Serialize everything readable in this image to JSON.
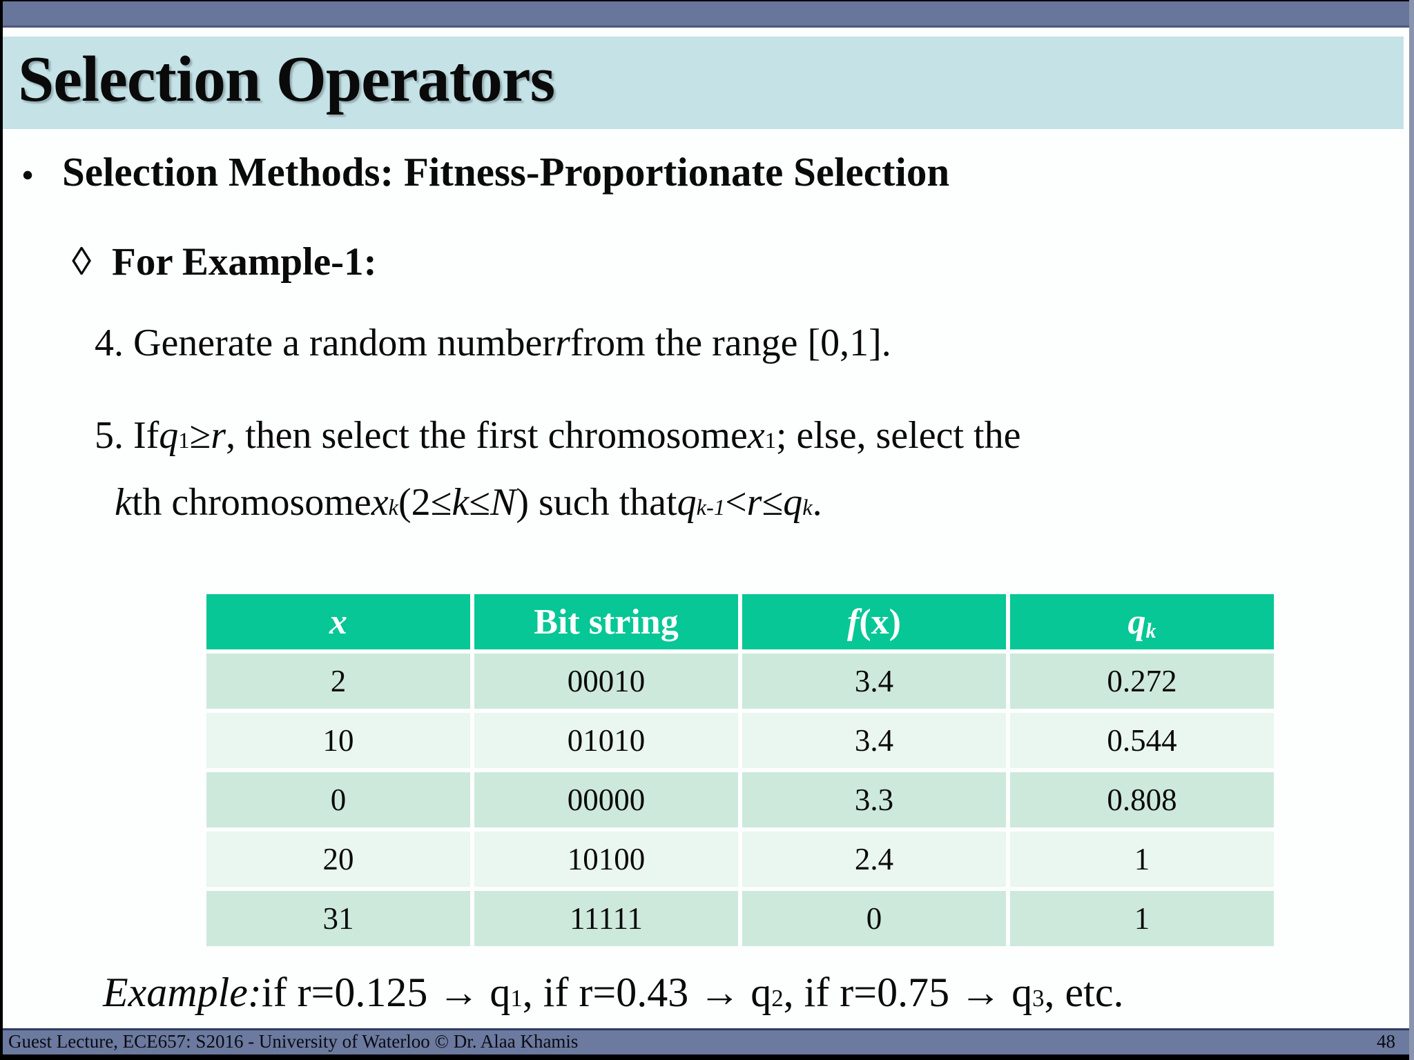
{
  "colors": {
    "top_bar": "#68769b",
    "title_band": "#c5e2e7",
    "table_header": "#06c795",
    "row_dark": "#cde9dc",
    "row_light": "#eaf6f0",
    "footer_bar": "#6b7a9e"
  },
  "header": {
    "title": "Selection Operators"
  },
  "bullets": {
    "l1_marker": "•",
    "l1": "Selection Methods: Fitness-Proportionate Selection",
    "l2_marker": "◊",
    "l2": "For Example-1:"
  },
  "steps": {
    "s4": [
      {
        "v": "4. Generate a random number "
      },
      {
        "st": "i",
        "v": "r"
      },
      {
        "v": " from the range [0,1]."
      }
    ],
    "s5a": [
      {
        "v": "5. If "
      },
      {
        "st": "i",
        "v": "q"
      },
      {
        "st": "sub",
        "v": "1"
      },
      {
        "v": "≥"
      },
      {
        "st": "i",
        "v": "r"
      },
      {
        "v": ", then select the first chromosome "
      },
      {
        "st": "i",
        "v": "x"
      },
      {
        "st": "sub",
        "v": "1"
      },
      {
        "v": "; else, select the"
      }
    ],
    "s5b": [
      {
        "st": "i",
        "v": "k"
      },
      {
        "v": "th chromosome "
      },
      {
        "st": "i",
        "v": "x"
      },
      {
        "st": "is",
        "v": "k"
      },
      {
        "v": " (2≤ "
      },
      {
        "st": "i",
        "v": "k"
      },
      {
        "v": " ≤ "
      },
      {
        "st": "i",
        "v": "N"
      },
      {
        "v": ") such that "
      },
      {
        "st": "i",
        "v": "q"
      },
      {
        "st": "is",
        "v": "k-1"
      },
      {
        "v": " < "
      },
      {
        "st": "i",
        "v": "r"
      },
      {
        "v": " ≤ "
      },
      {
        "st": "i",
        "v": "q"
      },
      {
        "st": "is",
        "v": "k"
      },
      {
        "v": "."
      }
    ]
  },
  "table": {
    "headers": [
      [
        {
          "st": "i",
          "v": "x"
        }
      ],
      [
        {
          "v": "Bit string"
        }
      ],
      [
        {
          "st": "i",
          "v": "f"
        },
        {
          "v": "(x)"
        }
      ],
      [
        {
          "st": "i",
          "v": "q"
        },
        {
          "st": "is",
          "v": "k"
        }
      ]
    ],
    "rows": [
      [
        "2",
        "00010",
        "3.4",
        "0.272"
      ],
      [
        "10",
        "01010",
        "3.4",
        "0.544"
      ],
      [
        "0",
        "00000",
        "3.3",
        "0.808"
      ],
      [
        "20",
        "10100",
        "2.4",
        "1"
      ],
      [
        "31",
        "11111",
        "0",
        "1"
      ]
    ]
  },
  "example": [
    {
      "st": "i",
      "v": "Example:"
    },
    {
      "v": " if r=0.125 → q"
    },
    {
      "st": "sub",
      "v": "1"
    },
    {
      "v": ", if r=0.43 → q"
    },
    {
      "st": "sub",
      "v": "2"
    },
    {
      "v": " , if r=0.75  → q"
    },
    {
      "st": "sub",
      "v": "3"
    },
    {
      "v": ", etc."
    }
  ],
  "footer": {
    "text": "Guest Lecture, ECE657: S2016  - University of Waterloo © Dr. Alaa Khamis",
    "page": "48"
  }
}
